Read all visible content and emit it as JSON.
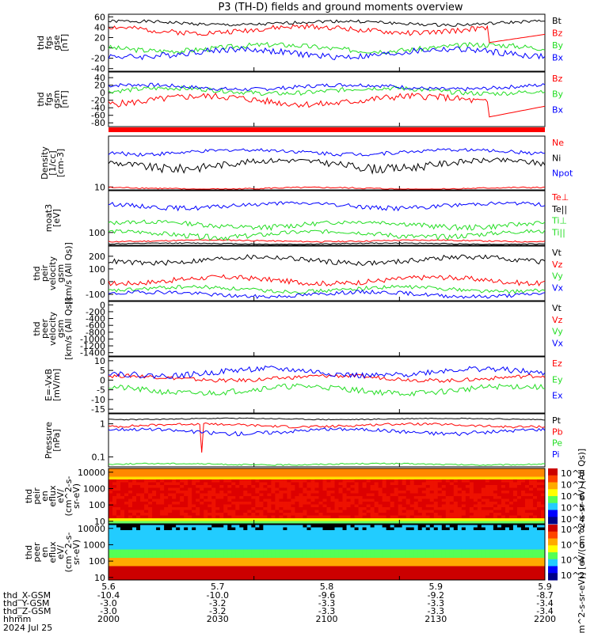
{
  "title": "P3 (TH-D) fields and ground moments overview",
  "colors": {
    "black": "#000000",
    "red": "#ff0000",
    "green": "#22dd22",
    "blue": "#0000ff"
  },
  "chart_data": [
    {
      "id": "fgs_gse",
      "type": "line",
      "ylabel": [
        "thd",
        "fgs",
        "gse",
        "[nT]"
      ],
      "ylim": [
        -45,
        65
      ],
      "yticks": [
        60,
        40,
        20,
        0,
        -20,
        -40
      ],
      "series": [
        {
          "name": "Bt",
          "color": "black",
          "base": 48,
          "amp": 6,
          "seed": 1
        },
        {
          "name": "Bz",
          "color": "red",
          "base": 35,
          "amp": 10,
          "seed": 2,
          "dip": true
        },
        {
          "name": "By",
          "color": "green",
          "base": 0,
          "amp": 10,
          "seed": 3
        },
        {
          "name": "Bx",
          "color": "blue",
          "base": -10,
          "amp": 12,
          "seed": 4
        }
      ]
    },
    {
      "id": "fgs_gsm",
      "type": "line",
      "ylabel": [
        "thd",
        "fgs",
        "gsm",
        "[nT]"
      ],
      "ylim": [
        -90,
        55
      ],
      "yticks": [
        40,
        20,
        0,
        -20,
        -40,
        -60,
        -80
      ],
      "series": [
        {
          "name": "Bz",
          "color": "red",
          "base": -20,
          "amp": 18,
          "seed": 5,
          "dip": true
        },
        {
          "name": "By",
          "color": "green",
          "base": 5,
          "amp": 12,
          "seed": 6
        },
        {
          "name": "Bx",
          "color": "blue",
          "base": 15,
          "amp": 10,
          "seed": 7
        }
      ]
    },
    {
      "id": "density",
      "type": "line",
      "log": true,
      "ylabel": [
        "Density",
        "[1/cc]",
        "[cm-3]"
      ],
      "ylim": [
        8,
        500
      ],
      "yticks": [
        10
      ],
      "series": [
        {
          "name": "Ne",
          "color": "red",
          "base": 9,
          "amp": 1,
          "seed": 8
        },
        {
          "name": "Ni",
          "color": "black",
          "base": 60,
          "amp": 30,
          "seed": 9
        },
        {
          "name": "Npot",
          "color": "blue",
          "base": 150,
          "amp": 40,
          "seed": 10
        }
      ]
    },
    {
      "id": "temp",
      "type": "line",
      "log": true,
      "ylabel": [
        "moat3",
        "[eV]"
      ],
      "ylim": [
        40,
        2000
      ],
      "yticks": [
        100
      ],
      "series": [
        {
          "name": "Te⊥",
          "color": "red",
          "base": 55,
          "amp": 5,
          "seed": 11
        },
        {
          "name": "Te||",
          "color": "black",
          "base": 45,
          "amp": 3,
          "seed": 12
        },
        {
          "name": "Ti⊥",
          "color": "green",
          "base": 180,
          "amp": 60,
          "seed": 13
        },
        {
          "name": "Ti||",
          "color": "green",
          "base": 90,
          "amp": 30,
          "seed": 14
        },
        {
          "name": "",
          "color": "blue",
          "base": 700,
          "amp": 200,
          "seed": 15
        }
      ]
    },
    {
      "id": "peir",
      "type": "line",
      "ylabel": [
        "thd",
        "peir",
        "velocity",
        "gsm",
        "[km/s (All Qs)]"
      ],
      "ylim": [
        -150,
        280
      ],
      "yticks": [
        200,
        100,
        0,
        -100
      ],
      "series": [
        {
          "name": "Vt",
          "color": "black",
          "base": 170,
          "amp": 40,
          "seed": 16
        },
        {
          "name": "Vz",
          "color": "red",
          "base": 10,
          "amp": 40,
          "seed": 17
        },
        {
          "name": "Vy",
          "color": "green",
          "base": -60,
          "amp": 30,
          "seed": 18
        },
        {
          "name": "Vx",
          "color": "blue",
          "base": -100,
          "amp": 30,
          "seed": 19
        }
      ]
    },
    {
      "id": "peer",
      "type": "line",
      "ylabel": [
        "thd",
        "peer",
        "velocity",
        "gsm",
        "[km/s (All Qs)]"
      ],
      "ylim": [
        -1500,
        100
      ],
      "yticks": [
        0,
        -200,
        -400,
        -600,
        -800,
        -1000,
        -1200,
        -1400
      ],
      "series": [
        {
          "name": "Vt",
          "color": "black",
          "empty": true
        },
        {
          "name": "Vz",
          "color": "red",
          "empty": true
        },
        {
          "name": "Vy",
          "color": "green",
          "empty": true
        },
        {
          "name": "Vx",
          "color": "blue",
          "empty": true
        }
      ]
    },
    {
      "id": "exb",
      "type": "line",
      "ylabel": [
        "E=-VxB",
        "[mV/m]"
      ],
      "ylim": [
        -17,
        12
      ],
      "yticks": [
        10,
        5,
        0,
        -5,
        -10,
        -15
      ],
      "series": [
        {
          "name": "Ez",
          "color": "red",
          "base": 1,
          "amp": 2,
          "seed": 20
        },
        {
          "name": "Ey",
          "color": "green",
          "base": -5,
          "amp": 3,
          "seed": 21
        },
        {
          "name": "Ex",
          "color": "blue",
          "base": 4,
          "amp": 3,
          "seed": 22
        }
      ]
    },
    {
      "id": "pressure",
      "type": "line",
      "log": true,
      "ylabel": [
        "Pressure",
        "[nPa]"
      ],
      "ylim": [
        0.05,
        2.0
      ],
      "yticks": [
        1.0,
        0.1
      ],
      "series": [
        {
          "name": "Pt",
          "color": "black",
          "base": 1.4,
          "amp": 0.1,
          "seed": 23
        },
        {
          "name": "Pb",
          "color": "red",
          "base": 0.9,
          "amp": 0.15,
          "seed": 24,
          "spikes": true
        },
        {
          "name": "Pe",
          "color": "green",
          "base": 0.06,
          "amp": 0.005,
          "seed": 25
        },
        {
          "name": "Pi",
          "color": "blue",
          "base": 0.6,
          "amp": 0.15,
          "seed": 26
        }
      ]
    },
    {
      "id": "peir_en",
      "type": "heatmap",
      "ylabel": [
        "thd",
        "peir",
        "en",
        "eflux",
        "eV/",
        "(cm^2-s-",
        "sr-eV)"
      ],
      "ylim": [
        7,
        17000
      ],
      "yticks": [
        10000,
        1000,
        100,
        10
      ],
      "colorbar": [
        "10^8",
        "10^7",
        "10^6",
        "10^5",
        "10^4"
      ]
    },
    {
      "id": "peer_en",
      "type": "heatmap",
      "ylabel": [
        "thd",
        "peer",
        "en",
        "eflux",
        "eV/",
        "(cm^2-s-",
        "sr-eV)"
      ],
      "ylim": [
        7,
        17000
      ],
      "yticks": [
        10000,
        1000,
        100,
        10
      ],
      "colorbar": [
        "10^8",
        "10^6",
        "10^4",
        "10^2"
      ]
    }
  ],
  "colorbar_label": "[eV/(cm^2-s-sr-eV)] [eV/(cm^2-s-sr-eV) (All Qs)]",
  "time_axis": {
    "ticks": [
      "5.6",
      "5.7",
      "5.8",
      "5.9",
      "5.9"
    ],
    "rows": [
      {
        "label": "thd_X-GSM",
        "values": [
          "-10.4",
          "-10.0",
          "-9.6",
          "-9.2",
          "-8.7"
        ]
      },
      {
        "label": "thd_Y-GSM",
        "values": [
          "-3.0",
          "-3.2",
          "-3.3",
          "-3.3",
          "-3.4"
        ]
      },
      {
        "label": "thd_Z-GSM",
        "values": [
          "-3.0",
          "-3.2",
          "-3.3",
          "-3.3",
          "-3.4"
        ]
      },
      {
        "label": "hhmm",
        "values": [
          "2000",
          "2030",
          "2100",
          "2130",
          "2200"
        ]
      }
    ],
    "date": "2024 Jul 25"
  }
}
